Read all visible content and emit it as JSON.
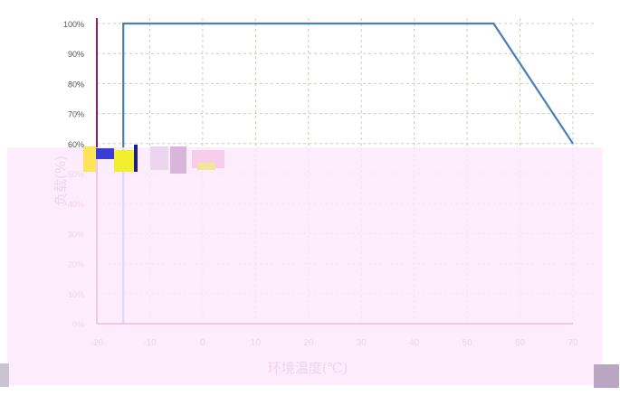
{
  "chart_data": {
    "type": "line",
    "title": "",
    "xlabel": "环境温度(℃)",
    "ylabel": "负载(%)",
    "x_ticks": [
      "-20",
      "-10",
      "0",
      "10",
      "20",
      "30",
      "40",
      "50",
      "60",
      "70"
    ],
    "y_ticks": [
      "0%",
      "10%",
      "20%",
      "30%",
      "40%",
      "50%",
      "60%",
      "70%",
      "80%",
      "90%",
      "100%"
    ],
    "xlim": [
      -20,
      70
    ],
    "ylim": [
      0,
      100
    ],
    "grid": true,
    "series": [
      {
        "x": [
          -15,
          -15,
          55,
          70
        ],
        "y": [
          0,
          100,
          100,
          60
        ]
      }
    ]
  },
  "colors": {
    "line": "#4a7fb5",
    "grid": "#c8d0c0",
    "axis": "#8a1f5a",
    "tick_upper": "#555555",
    "tick_lower": "#b05a95",
    "overlay": "#fce9fb"
  }
}
